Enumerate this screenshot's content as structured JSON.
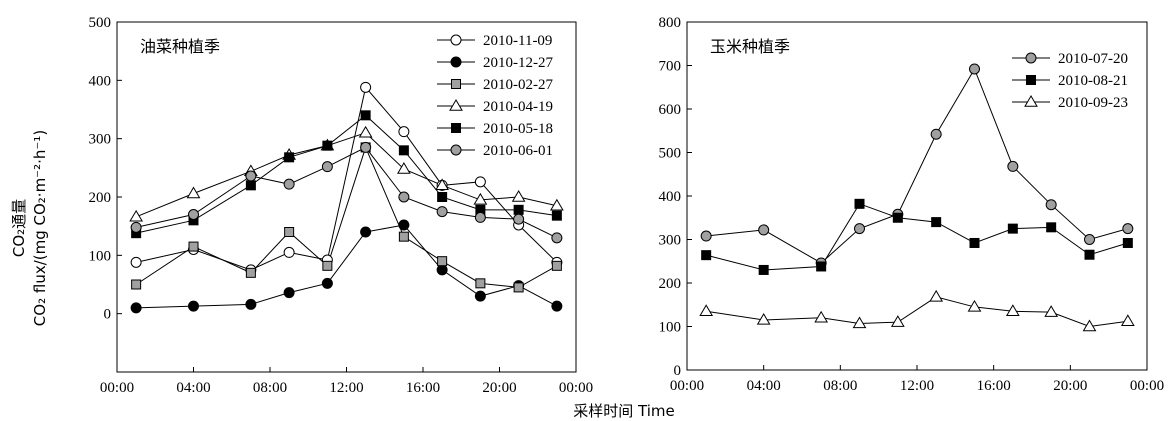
{
  "figure": {
    "shared_xlabel": "采样时间 Time",
    "shared_ylabel_line1": "CO₂通量",
    "shared_ylabel_line2": "CO₂ flux/(mg CO₂·m⁻²·h⁻¹)"
  },
  "chart_data": [
    {
      "type": "line",
      "title": "油菜种植季",
      "x_ticks": [
        "00:00",
        "04:00",
        "08:00",
        "12:00",
        "16:00",
        "20:00",
        "00:00"
      ],
      "xlim": [
        0,
        24
      ],
      "ylim": [
        -100,
        500
      ],
      "y_ticks": [
        0,
        100,
        200,
        300,
        400,
        500
      ],
      "legend_position": "top-right",
      "x": [
        "01:00",
        "04:00",
        "07:00",
        "09:00",
        "11:00",
        "13:00",
        "15:00",
        "17:00",
        "19:00",
        "21:00",
        "23:00"
      ],
      "series": [
        {
          "name": "2010-11-09",
          "marker": "circle-open",
          "color": "#ffffff",
          "values": [
            88,
            110,
            75,
            105,
            92,
            388,
            312,
            220,
            226,
            152,
            88
          ]
        },
        {
          "name": "2010-12-27",
          "marker": "circle-filled",
          "color": "#000000",
          "values": [
            10,
            13,
            16,
            36,
            52,
            140,
            152,
            75,
            30,
            48,
            13
          ]
        },
        {
          "name": "2010-02-27",
          "marker": "square-gray",
          "color": "#999999",
          "values": [
            50,
            115,
            70,
            140,
            82,
            285,
            132,
            90,
            52,
            45,
            82
          ]
        },
        {
          "name": "2010-04-19",
          "marker": "triangle-open",
          "color": "#ffffff",
          "values": [
            166,
            206,
            244,
            272,
            288,
            310,
            248,
            220,
            195,
            200,
            185
          ]
        },
        {
          "name": "2010-05-18",
          "marker": "square-filled",
          "color": "#000000",
          "values": [
            138,
            160,
            220,
            268,
            288,
            340,
            280,
            200,
            178,
            178,
            168
          ]
        },
        {
          "name": "2010-06-01",
          "marker": "circle-gray",
          "color": "#999999",
          "values": [
            148,
            170,
            236,
            222,
            252,
            285,
            200,
            175,
            165,
            162,
            130
          ]
        }
      ]
    },
    {
      "type": "line",
      "title": "玉米种植季",
      "x_ticks": [
        "00:00",
        "04:00",
        "08:00",
        "12:00",
        "16:00",
        "20:00",
        "00:00"
      ],
      "xlim": [
        0,
        24
      ],
      "ylim": [
        0,
        800
      ],
      "y_ticks": [
        0,
        100,
        200,
        300,
        400,
        500,
        600,
        700,
        800
      ],
      "legend_position": "top-right",
      "x": [
        "01:00",
        "04:00",
        "07:00",
        "09:00",
        "11:00",
        "13:00",
        "15:00",
        "17:00",
        "19:00",
        "21:00",
        "23:00"
      ],
      "series": [
        {
          "name": "2010-07-20",
          "marker": "circle-gray",
          "color": "#999999",
          "values": [
            308,
            322,
            246,
            325,
            358,
            542,
            692,
            468,
            380,
            300,
            325
          ]
        },
        {
          "name": "2010-08-21",
          "marker": "square-filled",
          "color": "#000000",
          "values": [
            264,
            230,
            238,
            382,
            350,
            340,
            292,
            325,
            328,
            265,
            292
          ]
        },
        {
          "name": "2010-09-23",
          "marker": "triangle-open",
          "color": "#ffffff",
          "values": [
            135,
            115,
            120,
            107,
            110,
            168,
            145,
            135,
            133,
            100,
            112
          ]
        }
      ]
    }
  ]
}
